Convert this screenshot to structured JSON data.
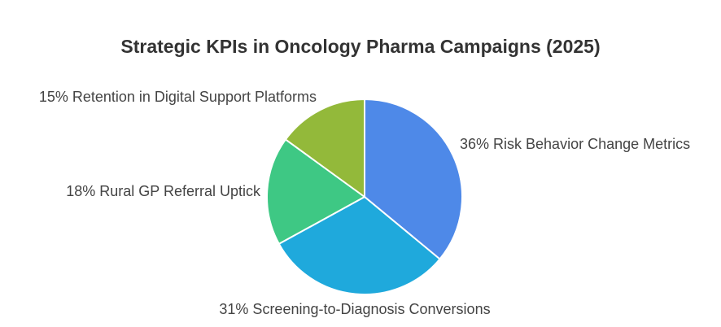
{
  "chart_data": {
    "type": "pie",
    "title": "Strategic KPIs in Oncology Pharma Campaigns (2025)",
    "slices": [
      {
        "label": "36% Risk Behavior Change Metrics",
        "value": 36,
        "color": "#4e89e8"
      },
      {
        "label": "31% Screening-to-Diagnosis Conversions",
        "value": 31,
        "color": "#1fa9dc"
      },
      {
        "label": "18% Rural GP Referral Uptick",
        "value": 18,
        "color": "#3ec884"
      },
      {
        "label": "15% Retention in Digital Support Platforms",
        "value": 15,
        "color": "#93b93a"
      }
    ],
    "start_angle": "top",
    "direction": "clockwise",
    "legend": "none"
  }
}
